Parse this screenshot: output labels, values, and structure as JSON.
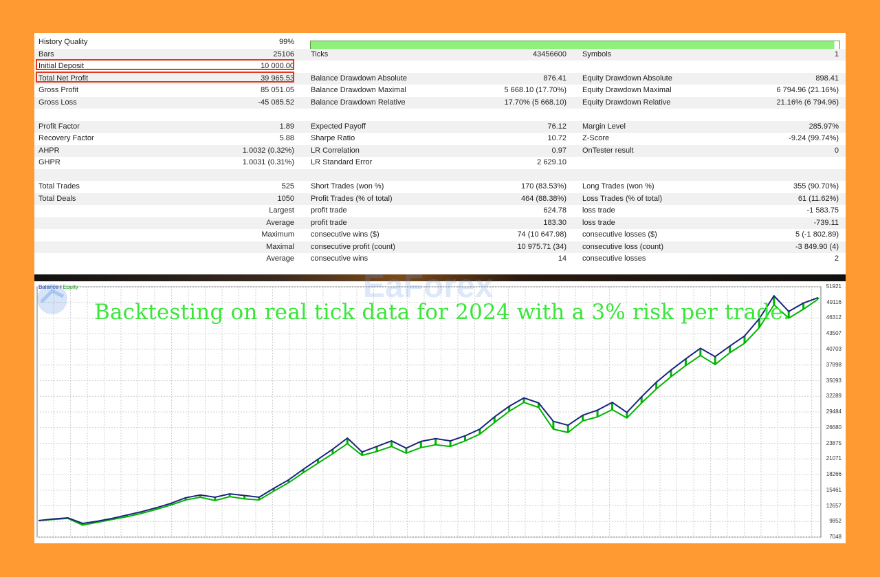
{
  "stats": {
    "history_quality": {
      "label": "History Quality",
      "value": "99%",
      "quality_fraction": 0.99
    },
    "rows": [
      {
        "c1l": "Bars",
        "c1v": "25106",
        "c2l": "Ticks",
        "c2v": "43456600",
        "c3l": "Symbols",
        "c3v": "1"
      },
      {
        "c1l": "Initial Deposit",
        "c1v": "10 000.00",
        "c2l": "",
        "c2v": "",
        "c3l": "",
        "c3v": ""
      },
      {
        "c1l": "Total Net Profit",
        "c1v": "39 965.53",
        "c2l": "Balance Drawdown Absolute",
        "c2v": "876.41",
        "c3l": "Equity Drawdown Absolute",
        "c3v": "898.41"
      },
      {
        "c1l": "Gross Profit",
        "c1v": "85 051.05",
        "c2l": "Balance Drawdown Maximal",
        "c2v": "5 668.10 (17.70%)",
        "c3l": "Equity Drawdown Maximal",
        "c3v": "6 794.96 (21.16%)"
      },
      {
        "c1l": "Gross Loss",
        "c1v": "-45 085.52",
        "c2l": "Balance Drawdown Relative",
        "c2v": "17.70% (5 668.10)",
        "c3l": "Equity Drawdown Relative",
        "c3v": "21.16% (6 794.96)"
      },
      {
        "c1l": "",
        "c1v": "",
        "c2l": "",
        "c2v": "",
        "c3l": "",
        "c3v": ""
      },
      {
        "c1l": "Profit Factor",
        "c1v": "1.89",
        "c2l": "Expected Payoff",
        "c2v": "76.12",
        "c3l": "Margin Level",
        "c3v": "285.97%"
      },
      {
        "c1l": "Recovery Factor",
        "c1v": "5.88",
        "c2l": "Sharpe Ratio",
        "c2v": "10.72",
        "c3l": "Z-Score",
        "c3v": "-9.24 (99.74%)"
      },
      {
        "c1l": "AHPR",
        "c1v": "1.0032 (0.32%)",
        "c2l": "LR Correlation",
        "c2v": "0.97",
        "c3l": "OnTester result",
        "c3v": "0"
      },
      {
        "c1l": "GHPR",
        "c1v": "1.0031 (0.31%)",
        "c2l": "LR Standard Error",
        "c2v": "2 629.10",
        "c3l": "",
        "c3v": ""
      },
      {
        "c1l": "",
        "c1v": "",
        "c2l": "",
        "c2v": "",
        "c3l": "",
        "c3v": ""
      },
      {
        "c1l": "Total Trades",
        "c1v": "525",
        "c2l": "Short Trades (won %)",
        "c2v": "170 (83.53%)",
        "c3l": "Long Trades (won %)",
        "c3v": "355 (90.70%)"
      },
      {
        "c1l": "Total Deals",
        "c1v": "1050",
        "c2l": "Profit Trades (% of total)",
        "c2v": "464 (88.38%)",
        "c3l": "Loss Trades (% of total)",
        "c3v": "61 (11.62%)"
      },
      {
        "c1l": "",
        "c1v": "Largest",
        "c2l": "profit trade",
        "c2v": "624.78",
        "c3l": "loss trade",
        "c3v": "-1 583.75"
      },
      {
        "c1l": "",
        "c1v": "Average",
        "c2l": "profit trade",
        "c2v": "183.30",
        "c3l": "loss trade",
        "c3v": "-739.11"
      },
      {
        "c1l": "",
        "c1v": "Maximum",
        "c2l": "consecutive wins ($)",
        "c2v": "74 (10 647.98)",
        "c3l": "consecutive losses ($)",
        "c3v": "5 (-1 802.89)"
      },
      {
        "c1l": "",
        "c1v": "Maximal",
        "c2l": "consecutive profit (count)",
        "c2v": "10 975.71 (34)",
        "c3l": "consecutive loss (count)",
        "c3v": "-3 849.90 (4)"
      },
      {
        "c1l": "",
        "c1v": "Average",
        "c2l": "consecutive wins",
        "c2v": "14",
        "c3l": "consecutive losses",
        "c3v": "2"
      }
    ]
  },
  "chart": {
    "legend_balance": "Balance",
    "legend_sep": " / ",
    "legend_equity": "Equity",
    "caption": "Backtesting on real tick data for 2024 with a 3% risk per trade.",
    "watermark": "EaForex",
    "colors": {
      "balance": "#1a237e",
      "equity": "#00b400",
      "caption": "#39e639",
      "highlight": "#e23a1a",
      "quality": "#8ff07a"
    }
  },
  "chart_data": {
    "type": "line",
    "y_ticks": [
      "51921",
      "49116",
      "46312",
      "43507",
      "40703",
      "37898",
      "35093",
      "32289",
      "29484",
      "26680",
      "23875",
      "21071",
      "18266",
      "15461",
      "12657",
      "9852",
      "7048"
    ],
    "ylim": [
      7048,
      51921
    ],
    "series": [
      {
        "name": "Balance",
        "values": [
          10000,
          10300,
          10500,
          9500,
          9900,
          10400,
          11000,
          11600,
          12300,
          13100,
          14100,
          14600,
          14200,
          14800,
          14500,
          14200,
          15800,
          17300,
          19200,
          21000,
          22800,
          24800,
          22300,
          23300,
          24300,
          23000,
          24200,
          24700,
          24300,
          25200,
          26400,
          28600,
          30500,
          32000,
          31100,
          27800,
          27100,
          28900,
          29800,
          31200,
          29400,
          32200,
          34800,
          37000,
          39000,
          40900,
          39400,
          41300,
          43100,
          46200,
          50300,
          47500,
          49000,
          49966
        ]
      },
      {
        "name": "Equity",
        "values": [
          10000,
          10200,
          10400,
          9200,
          9700,
          10200,
          10700,
          11300,
          12000,
          12800,
          13700,
          14200,
          13600,
          14300,
          13900,
          13700,
          15300,
          16800,
          18600,
          20300,
          22000,
          23800,
          21700,
          22400,
          23300,
          22100,
          23100,
          23600,
          23300,
          24300,
          25500,
          27600,
          29600,
          31200,
          30300,
          26400,
          25800,
          27900,
          28600,
          29900,
          28400,
          31100,
          33600,
          35800,
          37800,
          39600,
          38000,
          40100,
          41800,
          44600,
          48700,
          46300,
          47900,
          49700
        ]
      }
    ]
  }
}
